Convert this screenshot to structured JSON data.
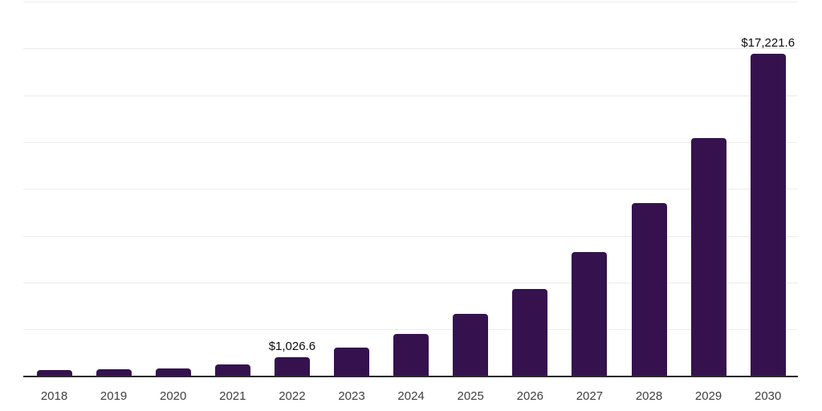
{
  "chart_data": {
    "type": "bar",
    "title": "",
    "xlabel": "",
    "ylabel": "",
    "categories": [
      "2018",
      "2019",
      "2020",
      "2021",
      "2022",
      "2023",
      "2024",
      "2025",
      "2026",
      "2027",
      "2028",
      "2029",
      "2030"
    ],
    "values": [
      340,
      380,
      430,
      640,
      1026.6,
      1545,
      2270,
      3310,
      4660,
      6620,
      9230,
      12700,
      17221.6
    ],
    "value_labels": {
      "2022": "$1,026.6",
      "2030": "$17,221.6"
    },
    "ylim": [
      0,
      20000
    ],
    "grid_step": 2500,
    "grid": true,
    "legend_position": "none",
    "y_tick_labels_visible": false,
    "colors": {
      "bar": "#35124e",
      "axis_line": "#2b2b2b",
      "gridline": "#ececec",
      "value_label_text": "#0d0d0d",
      "tick_label_text": "#404040",
      "background": "#ffffff"
    }
  }
}
